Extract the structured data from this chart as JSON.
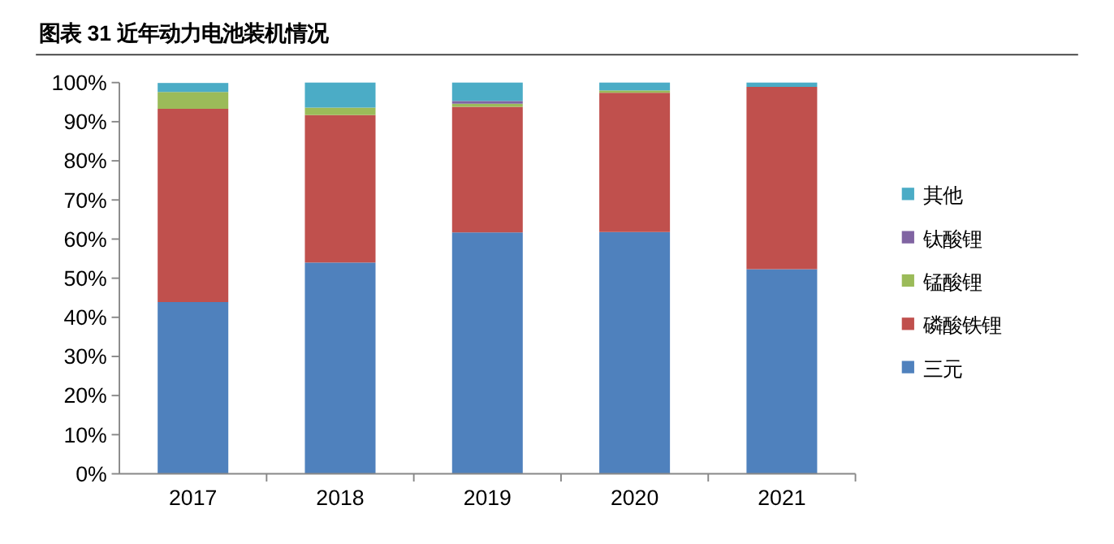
{
  "chart_data": {
    "type": "bar",
    "title": "图表 31 近年动力电池装机情况",
    "categories": [
      "2017",
      "2018",
      "2019",
      "2020",
      "2021"
    ],
    "stacked": true,
    "legend": "right",
    "ylim": [
      0,
      100
    ],
    "yticks": [
      {
        "value": 0,
        "label": "0%"
      },
      {
        "value": 10,
        "label": "10%"
      },
      {
        "value": 20,
        "label": "20%"
      },
      {
        "value": 30,
        "label": "30%"
      },
      {
        "value": 40,
        "label": "40%"
      },
      {
        "value": 50,
        "label": "50%"
      },
      {
        "value": 60,
        "label": "60%"
      },
      {
        "value": 70,
        "label": "70%"
      },
      {
        "value": 80,
        "label": "80%"
      },
      {
        "value": 90,
        "label": "90%"
      },
      {
        "value": 100,
        "label": "100%"
      }
    ],
    "series": [
      {
        "name": "三元",
        "color": "#4f81bd",
        "values": [
          43.9,
          54.0,
          61.7,
          61.8,
          52.3
        ]
      },
      {
        "name": "磷酸铁锂",
        "color": "#c0504d",
        "values": [
          49.4,
          37.7,
          32.1,
          35.6,
          46.6
        ]
      },
      {
        "name": "锰酸锂",
        "color": "#9bbb59",
        "values": [
          4.3,
          1.9,
          0.8,
          0.6,
          0
        ]
      },
      {
        "name": "钛酸锂",
        "color": "#8064a2",
        "values": [
          0,
          0,
          0.7,
          0,
          0
        ]
      },
      {
        "name": "其他",
        "color": "#4bacc6",
        "values": [
          2.3,
          6.4,
          4.7,
          2,
          1.1
        ]
      }
    ]
  }
}
